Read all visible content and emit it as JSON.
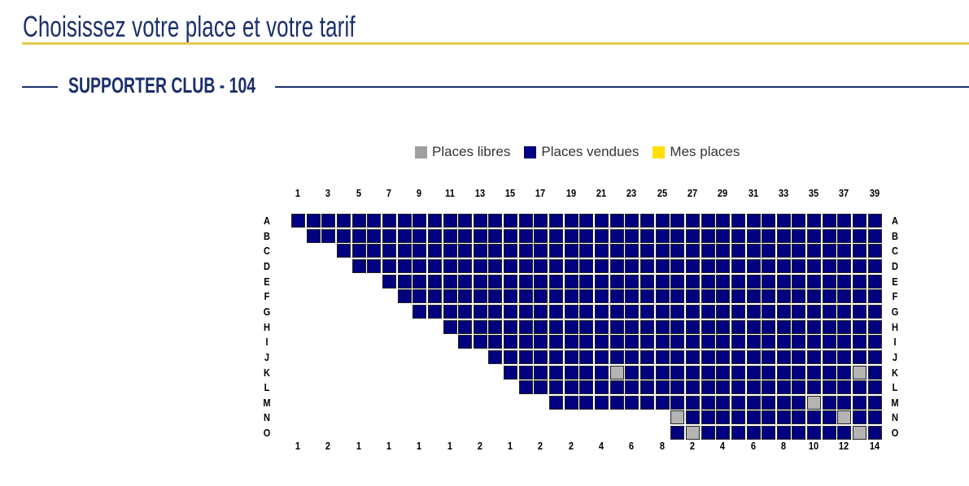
{
  "header": {
    "title": "Choisissez votre place et votre tarif",
    "section": "SUPPORTER CLUB - 104"
  },
  "legend": [
    {
      "label": "Places libres",
      "color": "#a0a0a0"
    },
    {
      "label": "Places vendues",
      "color": "#000080"
    },
    {
      "label": "Mes places",
      "color": "#ffe000"
    }
  ],
  "colors": {
    "free": "#b4b4b4",
    "sold": "#000080",
    "mine": "#ffe000"
  },
  "seatmap": {
    "columns": 39,
    "top_labels": [
      "1",
      "3",
      "5",
      "7",
      "9",
      "11",
      "13",
      "15",
      "17",
      "19",
      "21",
      "23",
      "25",
      "27",
      "29",
      "31",
      "33",
      "35",
      "37",
      "39"
    ],
    "bottom_labels": [
      "1",
      "2",
      "1",
      "1",
      "1",
      "1",
      "2",
      "1",
      "2",
      "2",
      "4",
      "6",
      "8",
      "2",
      "4",
      "6",
      "8",
      "10",
      "12",
      "14"
    ],
    "rows": [
      {
        "label": "A",
        "start": 1,
        "free": []
      },
      {
        "label": "B",
        "start": 2,
        "free": []
      },
      {
        "label": "C",
        "start": 4,
        "free": []
      },
      {
        "label": "D",
        "start": 5,
        "free": []
      },
      {
        "label": "E",
        "start": 7,
        "free": []
      },
      {
        "label": "F",
        "start": 8,
        "free": []
      },
      {
        "label": "G",
        "start": 9,
        "free": []
      },
      {
        "label": "H",
        "start": 11,
        "free": []
      },
      {
        "label": "I",
        "start": 12,
        "free": []
      },
      {
        "label": "J",
        "start": 14,
        "free": []
      },
      {
        "label": "K",
        "start": 15,
        "free": [
          22,
          38
        ]
      },
      {
        "label": "L",
        "start": 16,
        "free": []
      },
      {
        "label": "M",
        "start": 18,
        "free": [
          35
        ]
      },
      {
        "label": "N",
        "start": 26,
        "free": [
          26,
          37
        ]
      },
      {
        "label": "O",
        "start": 26,
        "free": [
          27,
          38
        ]
      }
    ]
  }
}
